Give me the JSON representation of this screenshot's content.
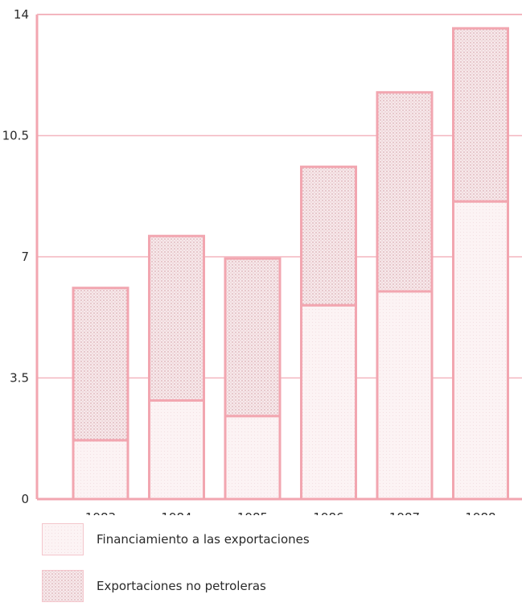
{
  "chart_data": {
    "type": "bar",
    "stacked": true,
    "categories": [
      "1983",
      "1984",
      "1985",
      "1986",
      "1987",
      "1988"
    ],
    "series": [
      {
        "name": "Financiamiento a las exportaciones",
        "values": [
          1.7,
          2.85,
          2.4,
          5.6,
          6.0,
          8.6
        ],
        "pattern": "light"
      },
      {
        "name": "Exportaciones no petroleras",
        "values": [
          4.4,
          4.75,
          4.55,
          4.0,
          5.75,
          5.0
        ],
        "pattern": "dotted"
      }
    ],
    "totals": [
      6.1,
      7.6,
      6.95,
      9.6,
      11.75,
      13.6
    ],
    "y_ticks": [
      "0",
      "3.5",
      "7",
      "10.5",
      "14"
    ],
    "ylim": [
      0,
      14
    ],
    "grid": true,
    "legend_position": "bottom-left",
    "colors": {
      "outline": "#f2a6b0",
      "grid": "#f3b6bf",
      "fill_light": "#fdf5f6",
      "fill_dotted": "#f1dfe2",
      "dot": "#d9a9b0"
    }
  }
}
